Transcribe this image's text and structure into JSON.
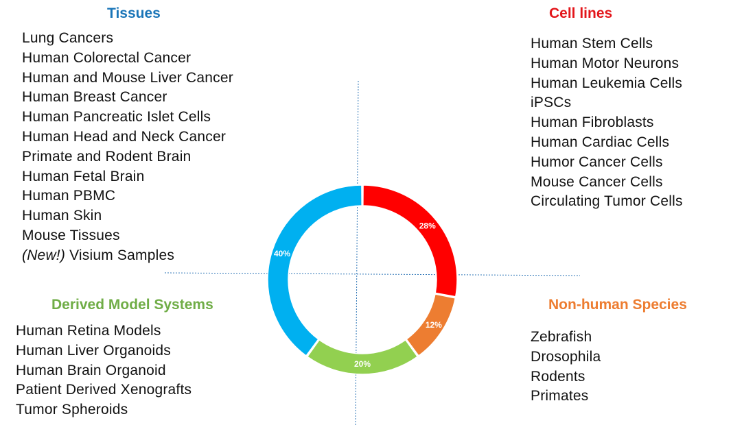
{
  "quadrants": {
    "tissues": {
      "title": "Tissues",
      "color": "#1a75b8",
      "items": [
        "Lung Cancers",
        "Human Colorectal Cancer",
        "Human and Mouse Liver Cancer",
        "Human Breast Cancer",
        "Human Pancreatic Islet Cells",
        "Human Head and Neck Cancer",
        "Primate and Rodent Brain",
        "Human Fetal Brain",
        "Human PBMC",
        "Human Skin",
        "Mouse Tissues"
      ],
      "new_item_prefix": "(New!)",
      "new_item_text": " Visium Samples"
    },
    "cell_lines": {
      "title": "Cell lines",
      "color": "#e3161b",
      "items": [
        "Human Stem Cells",
        "Human Motor Neurons",
        "Human Leukemia Cells",
        "iPSCs",
        "Human Fibroblasts",
        "Human Cardiac Cells",
        "Humor Cancer Cells",
        "Mouse Cancer Cells",
        "Circulating Tumor Cells"
      ]
    },
    "derived": {
      "title": "Derived Model Systems",
      "color": "#70ad47",
      "items": [
        "Human Retina Models",
        "Human Liver Organoids",
        "Human Brain Organoid",
        "Patient Derived Xenografts",
        "Tumor Spheroids"
      ]
    },
    "nonhuman": {
      "title": "Non-human Species",
      "color": "#ed7d31",
      "items": [
        "Zebrafish",
        "Drosophila",
        "Rodents",
        "Primates"
      ]
    }
  },
  "chart_data": {
    "type": "pie",
    "variant": "donut",
    "slices": [
      {
        "label": "28%",
        "value": 28,
        "color": "#ff0000"
      },
      {
        "label": "12%",
        "value": 12,
        "color": "#ed7d31"
      },
      {
        "label": "20%",
        "value": 20,
        "color": "#92d050"
      },
      {
        "label": "40%",
        "value": 40,
        "color": "#00b0f0"
      }
    ],
    "axis_color": "#2e75b6"
  }
}
